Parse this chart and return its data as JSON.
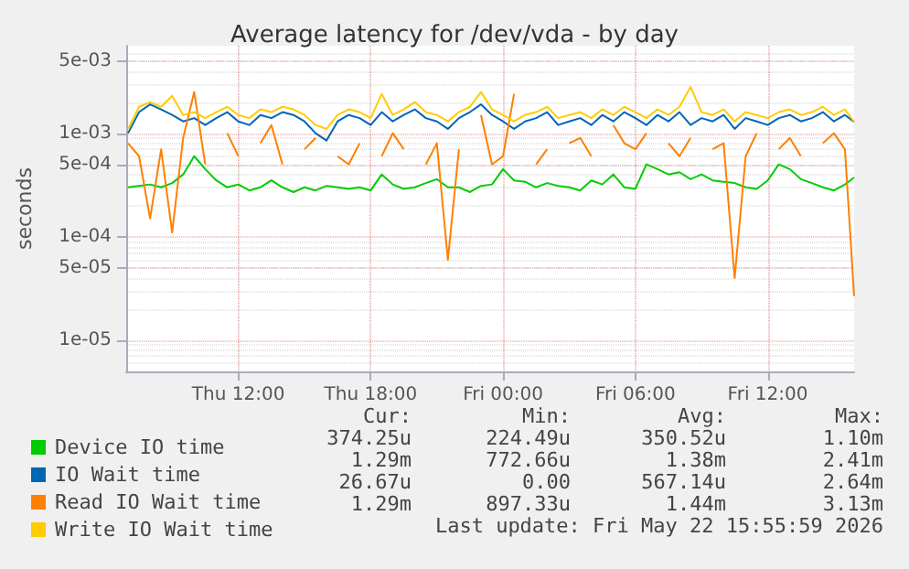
{
  "chart_data": {
    "type": "line",
    "title": "Average latency for /dev/vda - by day",
    "ylabel": "seconds",
    "x": [
      "2026-05-21T07:00",
      "2026-05-21T07:30",
      "2026-05-21T08:00",
      "2026-05-21T08:30",
      "2026-05-21T09:00",
      "2026-05-21T09:30",
      "2026-05-21T10:00",
      "2026-05-21T10:30",
      "2026-05-21T11:00",
      "2026-05-21T11:30",
      "2026-05-21T12:00",
      "2026-05-21T12:30",
      "2026-05-21T13:00",
      "2026-05-21T13:30",
      "2026-05-21T14:00",
      "2026-05-21T14:30",
      "2026-05-21T15:00",
      "2026-05-21T15:30",
      "2026-05-21T16:00",
      "2026-05-21T16:30",
      "2026-05-21T17:00",
      "2026-05-21T17:30",
      "2026-05-21T18:00",
      "2026-05-21T18:30",
      "2026-05-21T19:00",
      "2026-05-21T19:30",
      "2026-05-21T20:00",
      "2026-05-21T20:30",
      "2026-05-21T21:00",
      "2026-05-21T21:30",
      "2026-05-21T22:00",
      "2026-05-21T22:30",
      "2026-05-21T23:00",
      "2026-05-21T23:30",
      "2026-05-22T00:00",
      "2026-05-22T00:30",
      "2026-05-22T01:00",
      "2026-05-22T01:30",
      "2026-05-22T02:00",
      "2026-05-22T02:30",
      "2026-05-22T03:00",
      "2026-05-22T03:30",
      "2026-05-22T04:00",
      "2026-05-22T04:30",
      "2026-05-22T05:00",
      "2026-05-22T05:30",
      "2026-05-22T06:00",
      "2026-05-22T06:30",
      "2026-05-22T07:00",
      "2026-05-22T07:30",
      "2026-05-22T08:00",
      "2026-05-22T08:30",
      "2026-05-22T09:00",
      "2026-05-22T09:30",
      "2026-05-22T10:00",
      "2026-05-22T10:30",
      "2026-05-22T11:00",
      "2026-05-22T11:30",
      "2026-05-22T12:00",
      "2026-05-22T12:30",
      "2026-05-22T13:00",
      "2026-05-22T13:30",
      "2026-05-22T14:00",
      "2026-05-22T14:30",
      "2026-05-22T15:00",
      "2026-05-22T15:30",
      "2026-05-22T15:55"
    ],
    "series": [
      {
        "name": "Device IO time",
        "color": "#00cc00",
        "values": [
          0.0003,
          0.00031,
          0.00032,
          0.0003,
          0.00033,
          0.0004,
          0.0006,
          0.00045,
          0.00035,
          0.0003,
          0.00032,
          0.00028,
          0.0003,
          0.00035,
          0.0003,
          0.00027,
          0.0003,
          0.00028,
          0.00031,
          0.0003,
          0.00029,
          0.0003,
          0.00028,
          0.0004,
          0.00032,
          0.00029,
          0.0003,
          0.00033,
          0.00036,
          0.0003,
          0.0003,
          0.00027,
          0.00031,
          0.00032,
          0.00045,
          0.00035,
          0.00034,
          0.0003,
          0.00033,
          0.00031,
          0.0003,
          0.00028,
          0.00035,
          0.00032,
          0.0004,
          0.0003,
          0.00029,
          0.0005,
          0.00045,
          0.0004,
          0.00042,
          0.00036,
          0.0004,
          0.00035,
          0.00034,
          0.00033,
          0.0003,
          0.00029,
          0.00035,
          0.0005,
          0.00045,
          0.00036,
          0.00033,
          0.0003,
          0.00028,
          0.00032,
          0.000374
        ]
      },
      {
        "name": "IO Wait time",
        "color": "#0066b3",
        "values": [
          0.001,
          0.0016,
          0.0019,
          0.0017,
          0.0015,
          0.0013,
          0.0014,
          0.0012,
          0.0014,
          0.0016,
          0.0013,
          0.0012,
          0.0015,
          0.0014,
          0.0016,
          0.0015,
          0.0013,
          0.001,
          0.00085,
          0.0013,
          0.0015,
          0.0014,
          0.0012,
          0.0016,
          0.0013,
          0.0015,
          0.0017,
          0.0014,
          0.0013,
          0.0011,
          0.0014,
          0.0016,
          0.0019,
          0.0015,
          0.0013,
          0.0011,
          0.0013,
          0.0014,
          0.0016,
          0.0012,
          0.0013,
          0.0014,
          0.0012,
          0.0015,
          0.0013,
          0.0016,
          0.0014,
          0.0012,
          0.0015,
          0.0013,
          0.0016,
          0.0012,
          0.0014,
          0.0013,
          0.0015,
          0.0011,
          0.0014,
          0.0013,
          0.0012,
          0.0014,
          0.0015,
          0.0013,
          0.0014,
          0.0016,
          0.0013,
          0.0015,
          0.00129
        ]
      },
      {
        "name": "Read IO Wait time",
        "color": "#ff8000",
        "values": [
          0.0008,
          0.0006,
          0.00015,
          0.0007,
          0.00011,
          0.0009,
          0.0025,
          0.0005,
          null,
          0.001,
          0.0006,
          null,
          0.0008,
          0.0012,
          0.0005,
          null,
          0.0007,
          0.0009,
          null,
          0.0006,
          0.0005,
          0.0008,
          null,
          0.0006,
          0.001,
          0.0007,
          null,
          0.0005,
          0.0008,
          6e-05,
          0.0007,
          null,
          0.0015,
          0.0005,
          0.0006,
          0.0024,
          null,
          0.0005,
          0.0007,
          null,
          0.0008,
          0.0009,
          0.0006,
          null,
          0.0012,
          0.0008,
          0.0007,
          0.001,
          null,
          0.0008,
          0.0006,
          0.0009,
          null,
          0.0007,
          0.0008,
          4e-05,
          0.0006,
          0.001,
          null,
          0.0007,
          0.0009,
          0.0006,
          null,
          0.0008,
          0.001,
          0.0007,
          2.67e-05
        ]
      },
      {
        "name": "Write IO Wait time",
        "color": "#ffcc00",
        "values": [
          0.0011,
          0.0018,
          0.002,
          0.0018,
          0.0023,
          0.0015,
          0.0016,
          0.0014,
          0.0016,
          0.0018,
          0.0015,
          0.0014,
          0.0017,
          0.0016,
          0.0018,
          0.0017,
          0.0015,
          0.0012,
          0.0011,
          0.0015,
          0.0017,
          0.0016,
          0.0014,
          0.0024,
          0.0015,
          0.0017,
          0.002,
          0.0016,
          0.0015,
          0.0013,
          0.0016,
          0.0018,
          0.0025,
          0.0017,
          0.0015,
          0.0013,
          0.0015,
          0.0016,
          0.0018,
          0.0014,
          0.0015,
          0.0016,
          0.0014,
          0.0017,
          0.0015,
          0.0018,
          0.0016,
          0.0014,
          0.0017,
          0.0015,
          0.0018,
          0.0028,
          0.0016,
          0.0015,
          0.0017,
          0.0013,
          0.0016,
          0.0015,
          0.0014,
          0.0016,
          0.0017,
          0.0015,
          0.0016,
          0.0018,
          0.0015,
          0.0017,
          0.00129
        ]
      }
    ],
    "xlim": [
      "2026-05-21T06:55",
      "2026-05-22T15:55"
    ],
    "xticks": [
      {
        "value": "2026-05-21T12:00",
        "label": "Thu 12:00"
      },
      {
        "value": "2026-05-21T18:00",
        "label": "Thu 18:00"
      },
      {
        "value": "2026-05-22T00:00",
        "label": "Fri 00:00"
      },
      {
        "value": "2026-05-22T06:00",
        "label": "Fri 06:00"
      },
      {
        "value": "2026-05-22T12:00",
        "label": "Fri 12:00"
      }
    ],
    "ylim": [
      5e-06,
      0.007
    ],
    "yticks": [
      {
        "value": 1e-05,
        "label": "1e-05"
      },
      {
        "value": 5e-05,
        "label": "5e-05"
      },
      {
        "value": 0.0001,
        "label": "1e-04"
      },
      {
        "value": 0.0005,
        "label": "5e-04"
      },
      {
        "value": 0.001,
        "label": "1e-03"
      },
      {
        "value": 0.005,
        "label": "5e-03"
      }
    ],
    "log": "y",
    "grid": true,
    "legend": "bottom",
    "marker": "none",
    "annotations": [
      "Cur:",
      "Min:",
      "Avg:",
      "Max:",
      "374.25u",
      "224.49u",
      "350.52u",
      "1.10m",
      "1.29m",
      "772.66u",
      "1.38m",
      "2.41m",
      "26.67u",
      "0.00",
      "567.14u",
      "2.64m",
      "1.29m",
      "897.33u",
      "1.44m",
      "3.13m",
      "Last update: Fri May 22 15:55:59 2026"
    ]
  }
}
